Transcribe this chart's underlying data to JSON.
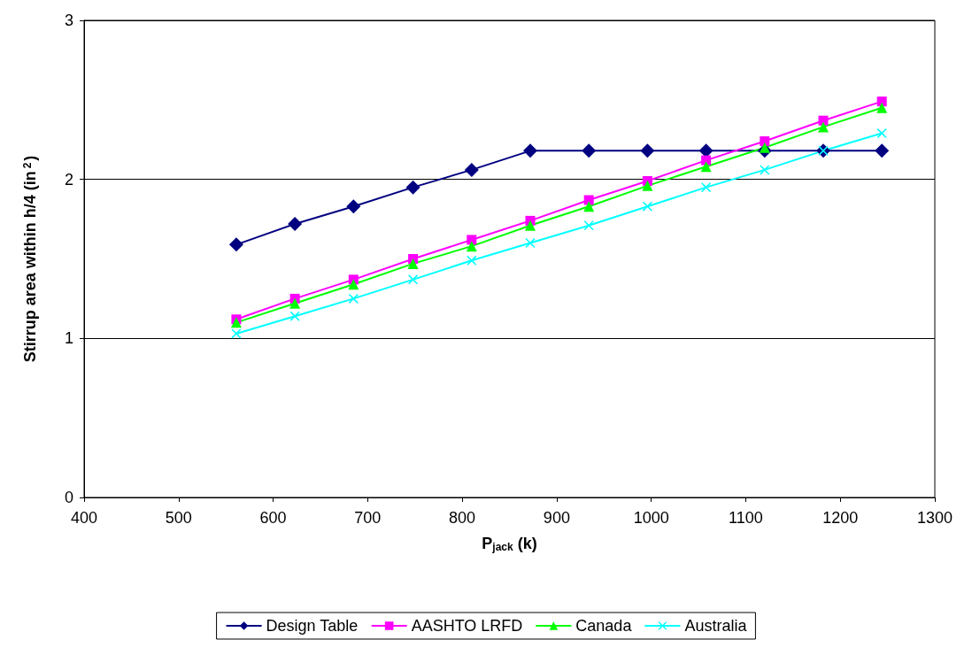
{
  "chart_data": {
    "type": "line",
    "xlabel": "P$_{jack}$ (k)",
    "ylabel": "Stirrup area within h/4 (in$^{2}$)",
    "x": [
      561,
      623,
      685,
      748,
      810,
      872,
      934,
      996,
      1058,
      1120,
      1182,
      1244
    ],
    "xlim": [
      400,
      1300
    ],
    "xticks": [
      400,
      500,
      600,
      700,
      800,
      900,
      1000,
      1100,
      1200,
      1300
    ],
    "ylim": [
      0,
      3
    ],
    "yticks": [
      0,
      1,
      2,
      3
    ],
    "grid": "y",
    "legend": "bottom",
    "line_style": "solid",
    "series": [
      {
        "name": "Design Table",
        "color": "#000080",
        "marker": "diamond",
        "values": [
          1.59,
          1.72,
          1.83,
          1.95,
          2.06,
          2.18,
          2.18,
          2.18,
          2.18,
          2.18,
          2.18,
          2.18
        ]
      },
      {
        "name": "AASHTO LRFD",
        "color": "#ff00ff",
        "marker": "square",
        "values": [
          1.12,
          1.25,
          1.37,
          1.5,
          1.62,
          1.74,
          1.87,
          1.99,
          2.12,
          2.24,
          2.37,
          2.49
        ]
      },
      {
        "name": "Canada",
        "color": "#00ff00",
        "marker": "triangle",
        "values": [
          1.1,
          1.22,
          1.34,
          1.47,
          1.58,
          1.71,
          1.83,
          1.96,
          2.08,
          2.2,
          2.33,
          2.45
        ]
      },
      {
        "name": "Australia",
        "color": "#00ffff",
        "marker": "cross",
        "values": [
          1.03,
          1.14,
          1.25,
          1.37,
          1.49,
          1.6,
          1.71,
          1.83,
          1.95,
          2.06,
          2.18,
          2.29
        ]
      }
    ]
  }
}
